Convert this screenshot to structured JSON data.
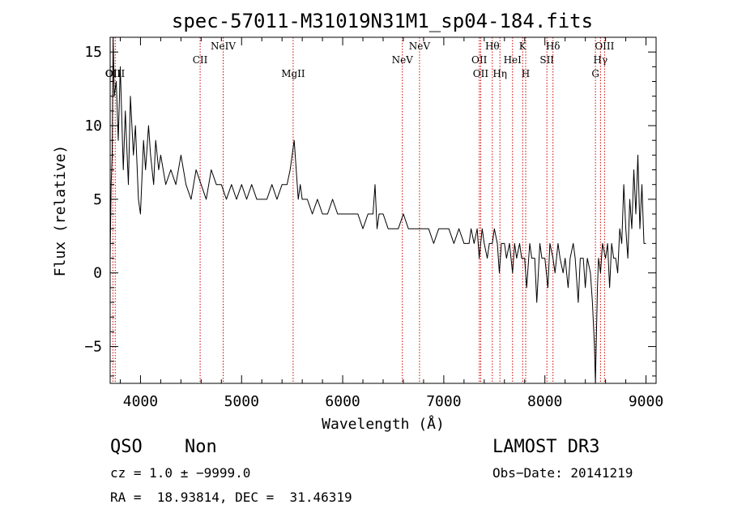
{
  "chart_data": {
    "type": "line",
    "title": "spec-57011-M31019N31M1_sp04-184.fits",
    "xlabel": "Wavelength (Å)",
    "ylabel": "Flux (relative)",
    "xlim": [
      3700,
      9100
    ],
    "ylim": [
      -7.5,
      16
    ],
    "xticks": [
      4000,
      5000,
      6000,
      7000,
      8000,
      9000
    ],
    "yticks": [
      -5,
      0,
      5,
      10,
      15
    ],
    "xtick_labels": [
      "4000",
      "5000",
      "6000",
      "7000",
      "8000",
      "9000"
    ],
    "ytick_labels": [
      "−5",
      "0",
      "5",
      "10",
      "15"
    ],
    "x_minor_step": 200,
    "y_minor_step": 1,
    "series": [
      {
        "name": "flux",
        "x": [
          3700,
          3710,
          3720,
          3730,
          3740,
          3760,
          3780,
          3800,
          3830,
          3850,
          3880,
          3900,
          3930,
          3950,
          3980,
          4000,
          4030,
          4050,
          4080,
          4100,
          4130,
          4150,
          4180,
          4200,
          4250,
          4300,
          4350,
          4400,
          4450,
          4500,
          4550,
          4600,
          4650,
          4700,
          4750,
          4800,
          4850,
          4900,
          4950,
          5000,
          5050,
          5100,
          5150,
          5200,
          5250,
          5300,
          5350,
          5400,
          5450,
          5480,
          5500,
          5520,
          5540,
          5560,
          5580,
          5600,
          5650,
          5700,
          5750,
          5800,
          5850,
          5900,
          5950,
          6000,
          6050,
          6100,
          6150,
          6200,
          6250,
          6300,
          6320,
          6340,
          6360,
          6400,
          6450,
          6500,
          6550,
          6600,
          6650,
          6700,
          6750,
          6800,
          6850,
          6900,
          6950,
          7000,
          7050,
          7100,
          7150,
          7200,
          7250,
          7270,
          7300,
          7330,
          7350,
          7380,
          7400,
          7430,
          7450,
          7480,
          7500,
          7530,
          7550,
          7570,
          7600,
          7620,
          7650,
          7680,
          7700,
          7720,
          7750,
          7770,
          7800,
          7820,
          7850,
          7870,
          7900,
          7920,
          7950,
          7970,
          8000,
          8030,
          8050,
          8080,
          8100,
          8130,
          8150,
          8180,
          8200,
          8230,
          8250,
          8280,
          8300,
          8330,
          8350,
          8380,
          8400,
          8420,
          8450,
          8470,
          8490,
          8500,
          8510,
          8520,
          8530,
          8550,
          8570,
          8600,
          8620,
          8640,
          8660,
          8680,
          8700,
          8720,
          8740,
          8760,
          8780,
          8800,
          8820,
          8840,
          8860,
          8880,
          8900,
          8920,
          8940,
          8960,
          8980,
          9000
        ],
        "y": [
          1,
          6,
          8,
          16,
          12,
          13,
          9,
          14,
          7,
          11,
          6,
          12,
          8,
          10,
          5,
          4,
          9,
          7,
          10,
          8,
          6,
          9,
          7,
          8,
          6,
          7,
          6,
          8,
          6,
          5,
          7,
          6,
          5,
          7,
          6,
          6,
          5,
          6,
          5,
          6,
          5,
          6,
          5,
          5,
          5,
          6,
          5,
          6,
          6,
          7,
          8,
          9,
          7,
          5,
          6,
          5,
          5,
          4,
          5,
          4,
          4,
          5,
          4,
          4,
          4,
          4,
          4,
          3,
          4,
          4,
          6,
          3,
          4,
          4,
          3,
          3,
          3,
          4,
          3,
          3,
          3,
          3,
          3,
          2,
          3,
          3,
          3,
          2,
          3,
          2,
          2,
          3,
          2,
          3,
          1,
          3,
          2,
          1,
          2,
          2,
          3,
          2,
          0,
          2,
          2,
          1,
          2,
          0,
          2,
          1,
          2,
          1,
          1,
          -1,
          2,
          1,
          1,
          -2,
          2,
          1,
          1,
          -1,
          2,
          1,
          0,
          2,
          1,
          0,
          1,
          -1,
          1,
          2,
          1,
          -2,
          1,
          1,
          -1,
          1,
          0,
          -2,
          -5,
          -8,
          -4,
          -1,
          1,
          0,
          2,
          1,
          2,
          -1,
          2,
          1,
          1,
          0,
          3,
          2,
          6,
          3,
          1,
          5,
          3,
          7,
          4,
          8,
          3,
          6,
          2,
          2
        ]
      }
    ],
    "lines": [
      {
        "x": 3727,
        "label": "OII",
        "row": 4
      },
      {
        "x": 3750,
        "label": "OIII",
        "row": 4
      },
      {
        "x": 4590,
        "label": "CII",
        "row": 2
      },
      {
        "x": 4818,
        "label": "NeIV",
        "row": 1
      },
      {
        "x": 5510,
        "label": "MgII",
        "row": 4
      },
      {
        "x": 6590,
        "label": "NeV",
        "row": 2
      },
      {
        "x": 6760,
        "label": "NeV",
        "row": 1
      },
      {
        "x": 7351,
        "label": "OII",
        "row": 2
      },
      {
        "x": 7365,
        "label": "OII",
        "row": 4
      },
      {
        "x": 7480,
        "label": "Hθ",
        "row": 1
      },
      {
        "x": 7555,
        "label": "Hη",
        "row": 4
      },
      {
        "x": 7680,
        "label": "HeI",
        "row": 2
      },
      {
        "x": 7780,
        "label": "K",
        "row": 1
      },
      {
        "x": 7810,
        "label": "H",
        "row": 4
      },
      {
        "x": 8020,
        "label": "SII",
        "row": 2
      },
      {
        "x": 8080,
        "label": "Hδ",
        "row": 1
      },
      {
        "x": 8500,
        "label": "G",
        "row": 4
      },
      {
        "x": 8550,
        "label": "Hγ",
        "row": 2
      },
      {
        "x": 8590,
        "label": "OIII",
        "row": 1
      }
    ]
  },
  "footer": {
    "object_class": "QSO",
    "subclass": "Non",
    "survey": "LAMOST DR3",
    "cz": "cz = 1.0 ± −9999.0",
    "obs_date": "Obs−Date: 20141219",
    "coords": "RA =  18.93814, DEC =  31.46319"
  },
  "colors": {
    "spectrum": "#000000",
    "line_markers": "#cc0000",
    "axes": "#000000",
    "background": "#ffffff"
  }
}
